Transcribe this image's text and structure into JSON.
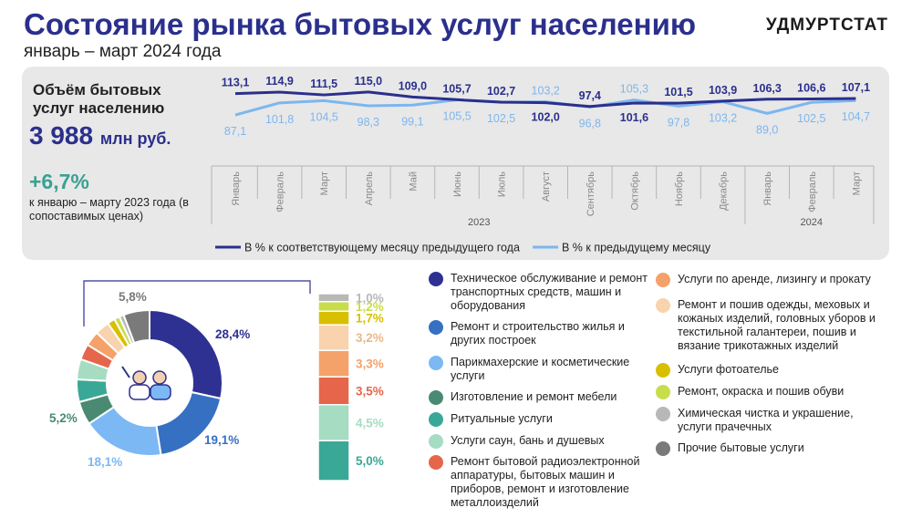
{
  "header": {
    "title": "Состояние рынка бытовых услуг населению",
    "subtitle": "январь – март 2024 года",
    "org": "УДМУРТСТАТ"
  },
  "summary": {
    "volume_label": "Объём бытовых услуг населению",
    "volume_value": "3 988",
    "volume_unit": "млн руб.",
    "growth_value": "+6,7%",
    "growth_note": "к январю – марту 2023 года (в сопоставимых ценах)"
  },
  "colors": {
    "yoy_line": "#2b2f8c",
    "mom_line": "#7db6ee",
    "panel_bg": "#e8e8e8"
  },
  "chart_data": [
    {
      "type": "line",
      "categories": [
        "Январь",
        "Февраль",
        "Март",
        "Апрель",
        "Май",
        "Июнь",
        "Июль",
        "Август",
        "Сентябрь",
        "Октябрь",
        "Ноябрь",
        "Декабрь",
        "Январь",
        "Февраль",
        "Март"
      ],
      "year_groups": [
        {
          "label": "2023",
          "count": 12
        },
        {
          "label": "2024",
          "count": 3
        }
      ],
      "series": [
        {
          "name": "В % к соответствующему месяцу предыдущего года",
          "values": [
            113.1,
            114.9,
            111.5,
            115.0,
            109.0,
            105.7,
            102.7,
            102.0,
            97.4,
            101.6,
            101.5,
            103.9,
            106.3,
            106.6,
            107.1
          ],
          "labels": [
            "113,1",
            "114,9",
            "111,5",
            "115,0",
            "109,0",
            "105,7",
            "102,7",
            "102,0",
            "97,4",
            "101,6",
            "101,5",
            "103,9",
            "106,3",
            "106,6",
            "107,1"
          ]
        },
        {
          "name": "В % к предыдущему месяцу",
          "values": [
            87.1,
            101.8,
            104.5,
            98.3,
            99.1,
            105.5,
            102.5,
            103.2,
            96.8,
            105.3,
            97.8,
            103.2,
            89.0,
            102.5,
            104.7
          ],
          "labels": [
            "87,1",
            "101,8",
            "104,5",
            "98,3",
            "99,1",
            "105,5",
            "102,5",
            "103,2",
            "96,8",
            "105,3",
            "97,8",
            "103,2",
            "89,0",
            "102,5",
            "104,7"
          ]
        }
      ],
      "legend": "bottom"
    },
    {
      "type": "pie",
      "style": "donut",
      "slices": [
        {
          "name": "Техническое обслуживание и ремонт транспортных средств, машин и оборудования",
          "value": 28.4,
          "label": "28,4%",
          "color": "#2e3192"
        },
        {
          "name": "Ремонт и строительство жилья и других построек",
          "value": 19.1,
          "label": "19,1%",
          "color": "#3670c2"
        },
        {
          "name": "Парикмахерские и косметические услуги",
          "value": 18.1,
          "label": "18,1%",
          "color": "#7cb8f4"
        },
        {
          "name": "Изготовление и ремонт мебели",
          "value": 5.2,
          "label": "5,2%",
          "color": "#4a8a72"
        },
        {
          "name": "Ритуальные услуги",
          "value": 5.0,
          "label": "5,0%",
          "color": "#3aa896"
        },
        {
          "name": "Услуги саун, бань и душевых",
          "value": 4.5,
          "label": "4,5%",
          "color": "#a6dcc2"
        },
        {
          "name": "Ремонт бытовой радиоэлектронной аппаратуры, бытовых машин и приборов, ремонт и изготовление металлоизделий",
          "value": 3.5,
          "label": "3,5%",
          "color": "#e5664a"
        },
        {
          "name": "Услуги по аренде, лизингу и прокату",
          "value": 3.3,
          "label": "3,3%",
          "color": "#f4a26a"
        },
        {
          "name": "Ремонт и пошив одежды, меховых и кожаных изделий, головных уборов и текстильной галантереи, пошив и вязание трикотажных изделий",
          "value": 3.2,
          "label": "3,2%",
          "color": "#f8d3ae"
        },
        {
          "name": "Услуги фотоателье",
          "value": 1.7,
          "label": "1,7%",
          "color": "#d8c000"
        },
        {
          "name": "Ремонт, окраска и пошив обуви",
          "value": 1.2,
          "label": "1,2%",
          "color": "#c9dd4a"
        },
        {
          "name": "Химическая чистка и крашение, услуги прачечных",
          "value": 1.0,
          "label": "1,0%",
          "color": "#b8b8b8"
        },
        {
          "name": "Прочие бытовые услуги",
          "value": 5.8,
          "label": "5,8%",
          "color": "#7a7a7a"
        }
      ]
    }
  ],
  "legend_items": [
    {
      "text": "Техническое обслуживание и ремонт транспортных средств, машин и оборудования",
      "color": "#2e3192"
    },
    {
      "text": "Ремонт и строительство жилья и других построек",
      "color": "#3670c2"
    },
    {
      "text": "Парикмахерские и косметические услуги",
      "color": "#7cb8f4"
    },
    {
      "text": "Изготовление и ремонт мебели",
      "color": "#4a8a72"
    },
    {
      "text": "Ритуальные услуги",
      "color": "#3aa896"
    },
    {
      "text": "Услуги саун, бань и душевых",
      "color": "#a6dcc2"
    },
    {
      "text": "Ремонт бытовой радиоэлектронной аппаратуры, бытовых машин и приборов, ремонт и изготовление металлоизделий",
      "color": "#e5664a"
    },
    {
      "text": "Услуги по аренде, лизингу и прокату",
      "color": "#f4a26a"
    },
    {
      "text": "Ремонт и пошив одежды, меховых и кожаных изделий, головных уборов и текстильной галантереи, пошив и вязание трикотажных изделий",
      "color": "#f8d3ae"
    },
    {
      "text": "Услуги фотоателье",
      "color": "#d8c000"
    },
    {
      "text": "Ремонт, окраска и пошив обуви",
      "color": "#c9dd4a"
    },
    {
      "text": "Химическая чистка и украшение, услуги прачечных",
      "color": "#b8b8b8"
    },
    {
      "text": "Прочие бытовые услуги",
      "color": "#7a7a7a"
    }
  ]
}
